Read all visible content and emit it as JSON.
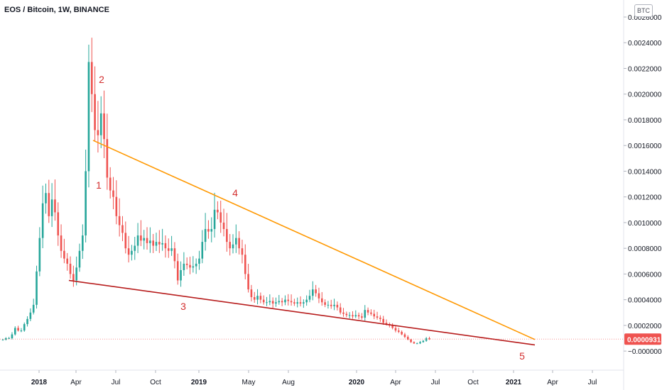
{
  "header": {
    "title": "EOS / Bitcoin, 1W, BINANCE",
    "currency_label": "BTC"
  },
  "colors": {
    "up": "#26a69a",
    "down": "#ef5350",
    "upper_trendline": "#ff9800",
    "lower_trendline": "#b71c1c",
    "wave_labels": "#d32f2f",
    "price_tag": "#ef5350"
  },
  "chart_data": {
    "type": "candlestick",
    "title": "EOS / Bitcoin, 1W, BINANCE",
    "ylabel": "BTC",
    "ylim": [
      -0.00011,
      0.0026
    ],
    "y_ticks": [
      "0.0026000",
      "0.0024000",
      "0.0022000",
      "0.0020000",
      "0.0018000",
      "0.0016000",
      "0.0014000",
      "0.0012000",
      "0.0010000",
      "0.0008000",
      "0.0006000",
      "0.0004000",
      "0.0002000",
      "−0.0000000"
    ],
    "x_ticks": [
      "2018",
      "Apr",
      "Jul",
      "Oct",
      "2019",
      "May",
      "Aug",
      "2020",
      "Apr",
      "Jul",
      "Oct",
      "2021",
      "Apr",
      "Jul"
    ],
    "current_price": "0.0000931",
    "wave_labels": [
      "1",
      "2",
      "3",
      "4",
      "5"
    ],
    "trendlines": [
      {
        "name": "upper",
        "from": [
          "2018-04-23",
          0.00164
        ],
        "to": [
          "2021-02-22",
          9e-05
        ]
      },
      {
        "name": "lower",
        "from": [
          "2018-02-26",
          0.00055
        ],
        "to": [
          "2021-02-22",
          4.8e-05
        ]
      }
    ],
    "close_series_approx": [
      9e-05,
      0.0001,
      0.0001,
      0.00013,
      0.00018,
      0.00016,
      0.00016,
      0.00021,
      0.00025,
      0.0003,
      0.00036,
      0.00062,
      0.00088,
      0.00115,
      0.00123,
      0.00105,
      0.00118,
      0.00108,
      0.0009,
      0.00078,
      0.00072,
      0.00068,
      0.0006,
      0.00055,
      0.00065,
      0.00078,
      0.0009,
      0.0014,
      0.00225,
      0.002,
      0.00172,
      0.00168,
      0.00185,
      0.00165,
      0.00135,
      0.00125,
      0.0012,
      0.00105,
      0.00098,
      0.00092,
      0.0008,
      0.00075,
      0.00078,
      0.00082,
      0.0009,
      0.00086,
      0.00088,
      0.00084,
      0.00086,
      0.00082,
      0.00085,
      0.00083,
      0.00084,
      0.0008,
      0.00078,
      0.0008,
      0.0007,
      0.00055,
      0.00063,
      0.00068,
      0.00067,
      0.00065,
      0.00066,
      0.00068,
      0.00072,
      0.00085,
      0.00095,
      0.00093,
      0.00095,
      0.0011,
      0.00108,
      0.001,
      0.00095,
      0.00085,
      0.0008,
      0.00083,
      0.00088,
      0.0008,
      0.00075,
      0.0006,
      0.00048,
      0.00042,
      0.0004,
      0.00043,
      0.0004,
      0.00038,
      0.00038,
      0.00039,
      0.00037,
      0.00038,
      0.00039,
      0.00038,
      0.0004,
      0.00039,
      0.00038,
      0.00037,
      0.00038,
      0.00037,
      0.00038,
      0.0004,
      0.00043,
      0.00048,
      0.00045,
      0.00041,
      0.00038,
      0.00036,
      0.00036,
      0.00035,
      0.00036,
      0.00034,
      0.0003,
      0.00029,
      0.00028,
      0.00028,
      0.00027,
      0.00028,
      0.00027,
      0.00026,
      0.00032,
      0.0003,
      0.00029,
      0.00027,
      0.00026,
      0.00025,
      0.00022,
      0.00021,
      0.0002,
      0.00018,
      0.00016,
      0.00015,
      0.00013,
      0.00011,
      9e-05,
      7e-05,
      6e-05,
      6e-05,
      7e-05,
      8e-05,
      0.0001,
      9.31e-05
    ]
  }
}
